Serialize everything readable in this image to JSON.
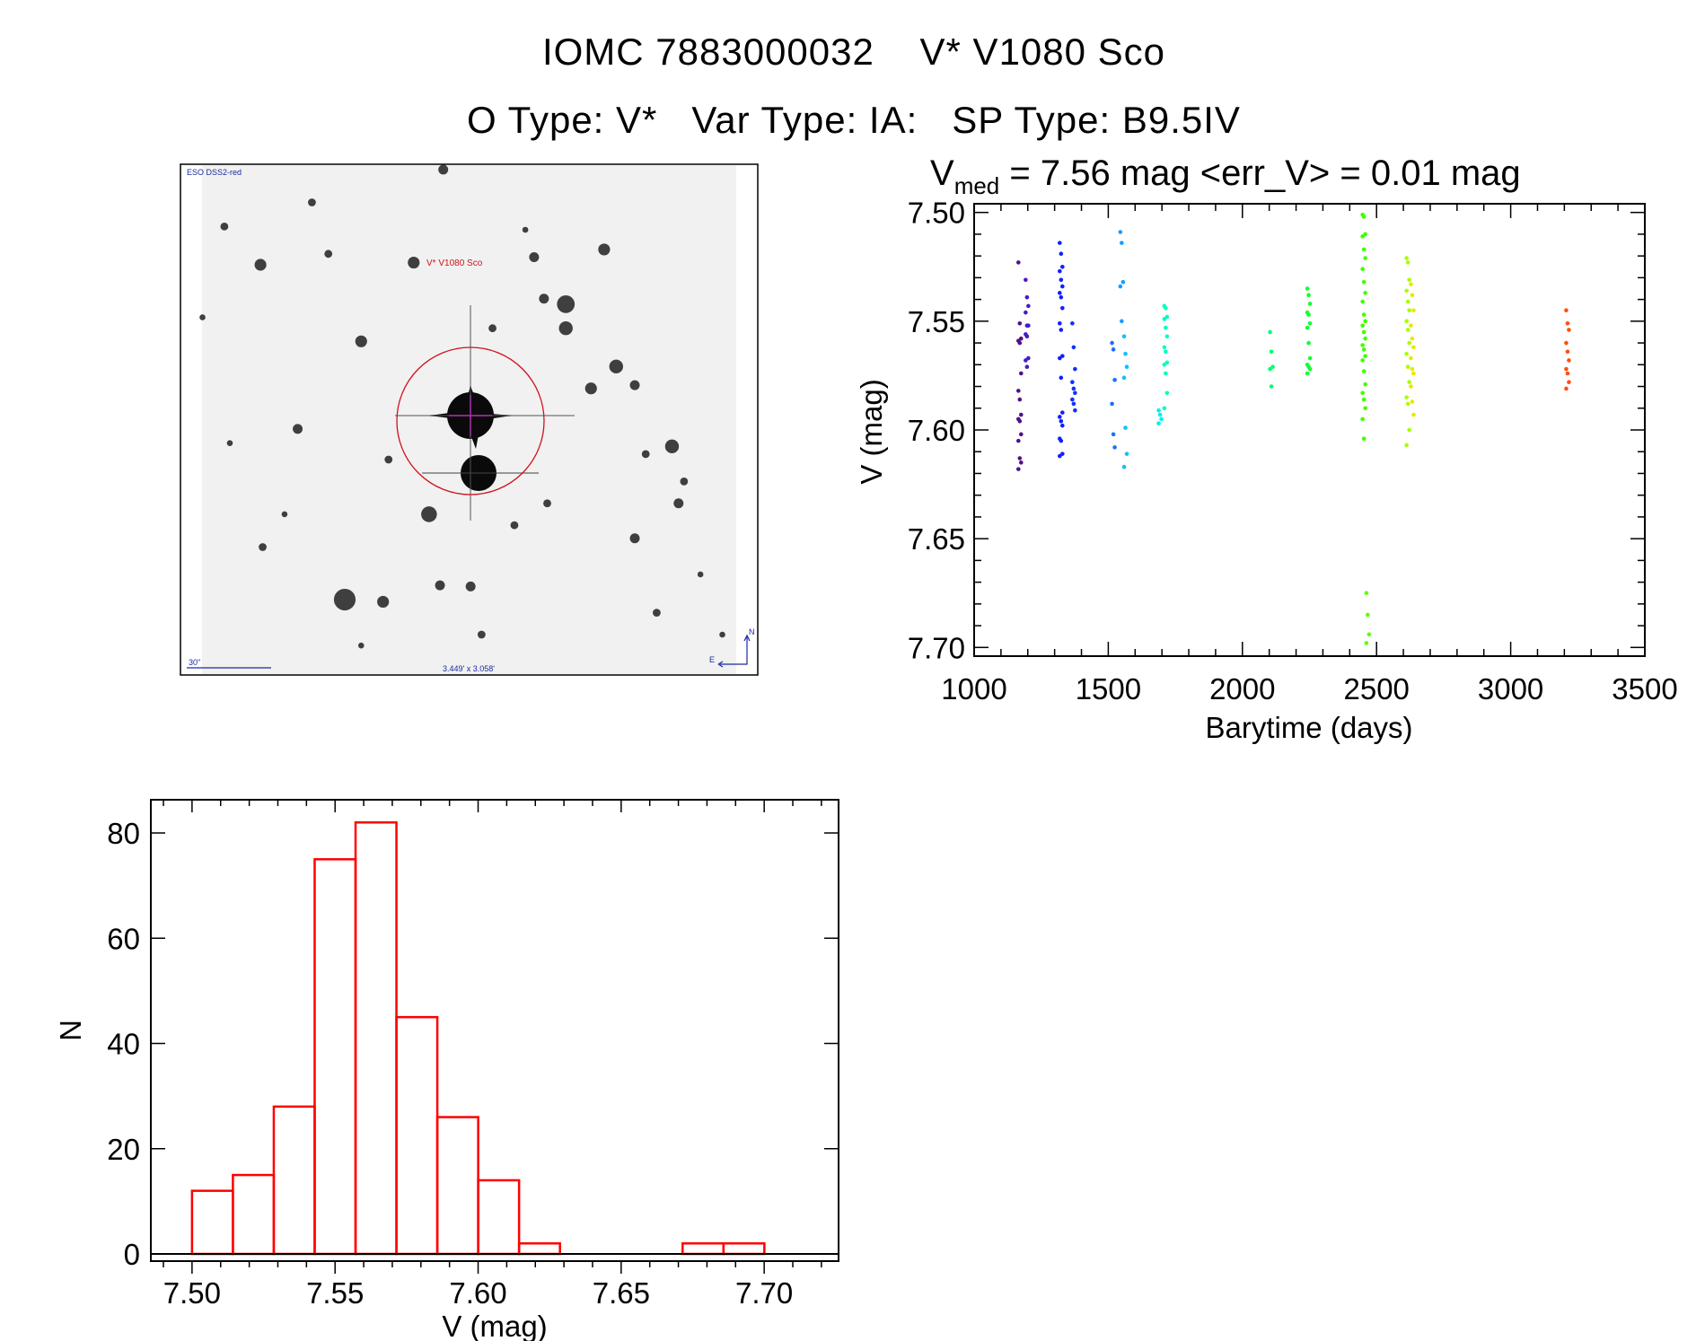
{
  "header": {
    "title_line1": "IOMC 7883000032    V* V1080 Sco",
    "title_line2": "O Type: V*   Var Type: IA:   SP Type: B9.5IV"
  },
  "image_panel": {
    "survey_label": "ESO DSS2-red",
    "target_label": "V* V1080 Sco",
    "scale_label": "30\"",
    "fov_label": "3.449' x 3.058'",
    "north_label": "N",
    "east_label": "E"
  },
  "chart_data": [
    {
      "type": "scatter",
      "title_prefix": "V",
      "title_sub": "med",
      "title_rest": " = 7.56 mag <err_V> = 0.01 mag",
      "xlabel": "Barytime (days)",
      "ylabel": "V (mag)",
      "xlim": [
        1000,
        3500
      ],
      "ylim": [
        7.704,
        7.496
      ],
      "xticks": [
        "1000",
        "1500",
        "2000",
        "2500",
        "3000",
        "3500"
      ],
      "yticks": [
        "7.50",
        "7.55",
        "7.60",
        "7.65",
        "7.70"
      ],
      "series": [
        {
          "name": "g1",
          "color": "#50108a",
          "x": 1170,
          "y": [
            7.523,
            7.551,
            7.558,
            7.559,
            7.56,
            7.574,
            7.582,
            7.586,
            7.593,
            7.595,
            7.596,
            7.602,
            7.605,
            7.613,
            7.615,
            7.618
          ]
        },
        {
          "name": "g1b",
          "color": "#4a18c8",
          "x": 1197,
          "y": [
            7.531,
            7.539,
            7.543,
            7.546,
            7.552,
            7.552,
            7.556,
            7.557,
            7.567,
            7.568,
            7.571
          ]
        },
        {
          "name": "g2",
          "color": "#1020ff",
          "x": 1324,
          "y": [
            7.514,
            7.519,
            7.525,
            7.527,
            7.531,
            7.534,
            7.537,
            7.539,
            7.544,
            7.551,
            7.554,
            7.566,
            7.567,
            7.576,
            7.592,
            7.594,
            7.596,
            7.598,
            7.604,
            7.605,
            7.611,
            7.612
          ]
        },
        {
          "name": "g2b",
          "color": "#1030ff",
          "x": 1371,
          "y": [
            7.551,
            7.562,
            7.572,
            7.578,
            7.581,
            7.583,
            7.586,
            7.588,
            7.591
          ]
        },
        {
          "name": "g3",
          "color": "#1a70ff",
          "x": 1519,
          "y": [
            7.56,
            7.563,
            7.577,
            7.588,
            7.602,
            7.608
          ]
        },
        {
          "name": "g3b",
          "color": "#1a9cff",
          "x": 1550,
          "y": [
            7.509,
            7.514,
            7.532,
            7.534,
            7.55
          ]
        },
        {
          "name": "g3c",
          "color": "#10c0ff",
          "x": 1564,
          "y": [
            7.557,
            7.565,
            7.571,
            7.576,
            7.599,
            7.611,
            7.617
          ]
        },
        {
          "name": "g4",
          "color": "#00f0f0",
          "x": 1693,
          "y": [
            7.591,
            7.593,
            7.595,
            7.597
          ]
        },
        {
          "name": "g4b",
          "color": "#00ffc0",
          "x": 1714,
          "y": [
            7.543,
            7.544,
            7.548,
            7.549,
            7.553,
            7.557,
            7.562,
            7.564,
            7.569,
            7.57,
            7.574,
            7.583,
            7.59
          ]
        },
        {
          "name": "g5",
          "color": "#00ff70",
          "x": 2108,
          "y": [
            7.555,
            7.564,
            7.571,
            7.572,
            7.58
          ]
        },
        {
          "name": "g6",
          "color": "#10ff30",
          "x": 2247,
          "y": [
            7.535,
            7.538,
            7.542,
            7.546,
            7.547,
            7.551,
            7.553,
            7.56,
            7.567,
            7.57,
            7.571,
            7.572,
            7.574
          ]
        },
        {
          "name": "g7",
          "color": "#40ff00",
          "x": 2453,
          "y": [
            7.501,
            7.502,
            7.51,
            7.511,
            7.517,
            7.521,
            7.526,
            7.532,
            7.537,
            7.541,
            7.547,
            7.55,
            7.552,
            7.555,
            7.558,
            7.561,
            7.563,
            7.566,
            7.568,
            7.573,
            7.579,
            7.583,
            7.586,
            7.59,
            7.595,
            7.604
          ]
        },
        {
          "name": "g7b",
          "color": "#60ff00",
          "x": 2467,
          "y": [
            7.675,
            7.685,
            7.694,
            7.698
          ]
        },
        {
          "name": "g8",
          "color": "#a8ff00",
          "x": 2617,
          "y": [
            7.521,
            7.523,
            7.531,
            7.536,
            7.541,
            7.545,
            7.55,
            7.554,
            7.56,
            7.565,
            7.571,
            7.578,
            7.585,
            7.588,
            7.6,
            7.607
          ]
        },
        {
          "name": "g8b",
          "color": "#e8e800",
          "x": 2633,
          "y": [
            7.533,
            7.538,
            7.545,
            7.552,
            7.558,
            7.562,
            7.567,
            7.572,
            7.574,
            7.58,
            7.587,
            7.593
          ]
        },
        {
          "name": "g9",
          "color": "#ff5010",
          "x": 3212,
          "y": [
            7.545,
            7.551,
            7.554,
            7.56,
            7.564,
            7.568,
            7.572,
            7.574,
            7.578,
            7.581
          ]
        }
      ]
    },
    {
      "type": "bar",
      "subtype": "histogram",
      "xlabel": "V (mag)",
      "ylabel": "N",
      "xlim": [
        7.4856,
        7.726
      ],
      "ylim": [
        0,
        81.4
      ],
      "bin_start": 7.5,
      "bin_width": 0.01429,
      "values": [
        12,
        15,
        28,
        75,
        82,
        45,
        26,
        14,
        2,
        0,
        0,
        0,
        2,
        2
      ],
      "bar_color": "#ff0000",
      "xticks": [
        "7.50",
        "7.55",
        "7.60",
        "7.65",
        "7.70"
      ],
      "yticks": [
        "0",
        "20",
        "40",
        "60",
        "80"
      ]
    }
  ]
}
